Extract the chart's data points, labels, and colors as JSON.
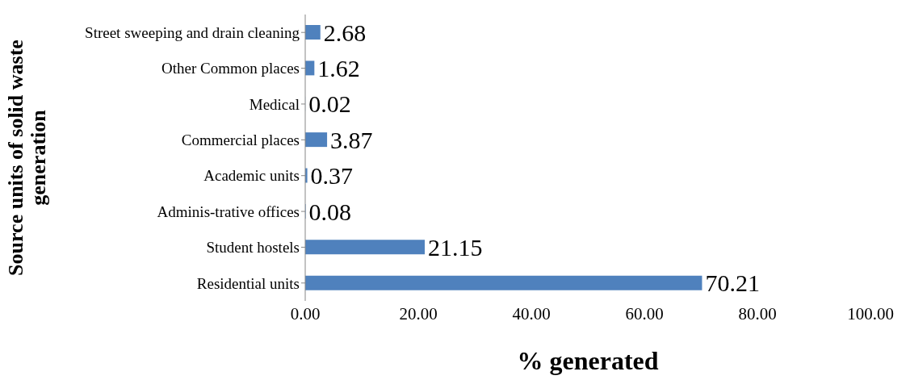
{
  "chart_data": {
    "type": "bar",
    "orientation": "horizontal",
    "categories": [
      "Street sweeping and drain cleaning",
      "Other Common places",
      "Medical",
      "Commercial places",
      "Academic units",
      "Adminis-trative offices",
      "Student hostels",
      "Residential units"
    ],
    "values": [
      2.68,
      1.62,
      0.02,
      3.87,
      0.37,
      0.08,
      21.15,
      70.21
    ],
    "color": "#4f81bd",
    "xlim": [
      0,
      100
    ],
    "xticks": [
      {
        "value": 0,
        "label": "0.00"
      },
      {
        "value": 20,
        "label": "20.00"
      },
      {
        "value": 40,
        "label": "40.00"
      },
      {
        "value": 60,
        "label": "60.00"
      },
      {
        "value": 80,
        "label": "80.00"
      },
      {
        "value": 100,
        "label": "100.00"
      }
    ],
    "xlabel": "% generated",
    "ylabel": "Source units of solid waste generation",
    "data_labels": true,
    "grid": false,
    "legend": false
  }
}
